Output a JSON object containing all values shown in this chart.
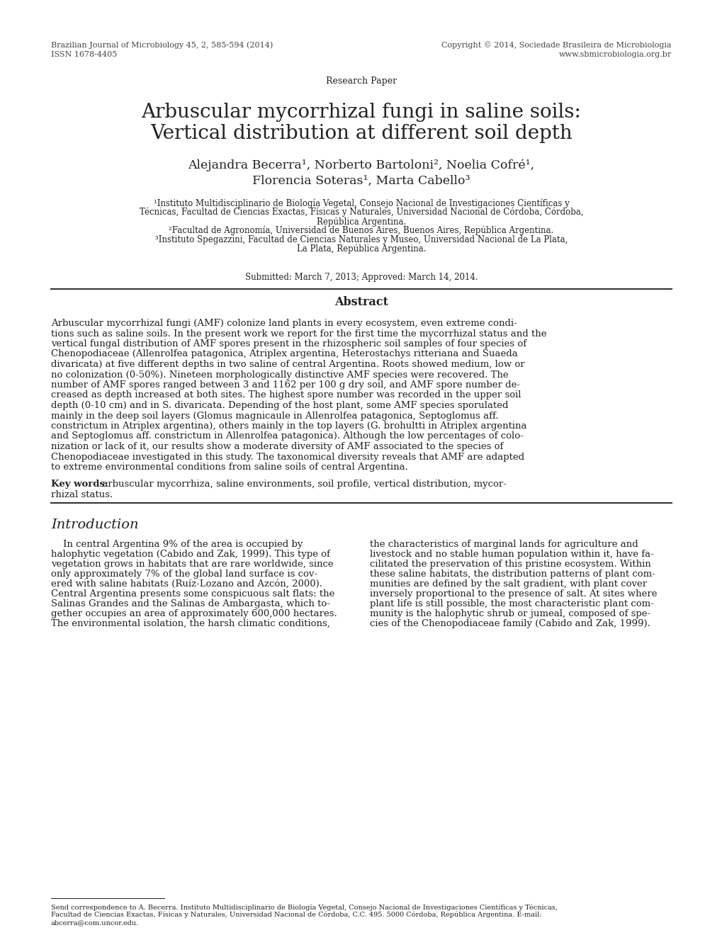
{
  "bg_color": "#ffffff",
  "text_color": "#222222",
  "header_color": "#444444",
  "header_left_line1": "Brazilian Journal of Microbiology 45, 2, 585-594 (2014)",
  "header_left_line2": "ISSN 1678-4405",
  "header_right_line1": "Copyright © 2014, Sociedade Brasileira de Microbiologia",
  "header_right_line2": "www.sbmicrobiologia.org.br",
  "research_paper_label": "Research Paper",
  "title_line1": "Arbuscular mycorrhizal fungi in saline soils:",
  "title_line2": "Vertical distribution at different soil depth",
  "authors_line1": "Alejandra Becerra¹, Norberto Bartoloni², Noelia Cofré¹,",
  "authors_line2": "Florencia Soteras¹, Marta Cabello³",
  "affil1": "¹Instituto Multidisciplinario de Biología Vegetal, Consejo Nacional de Investigaciones Científicas y",
  "affil1b": "Técnicas, Facultad de Ciencias Exactas, Físicas y Naturales, Universidad Nacional de Córdoba, Córdoba,",
  "affil1c": "República Argentina.",
  "affil2": "²Facultad de Agronomía, Universidad de Buenos Aires, Buenos Aires, República Argentina.",
  "affil3": "³Instituto Spegazzini, Facultad de Ciencias Naturales y Museo, Universidad Nacional de La Plata,",
  "affil3b": "La Plata, República Argentina.",
  "submitted": "Submitted: March 7, 2013; Approved: March 14, 2014.",
  "abstract_title": "Abstract",
  "abstract_lines": [
    "Arbuscular mycorrhizal fungi (AMF) colonize land plants in every ecosystem, even extreme condi-",
    "tions such as saline soils. In the present work we report for the first time the mycorrhizal status and the",
    "vertical fungal distribution of AMF spores present in the rhizospheric soil samples of four species of",
    "Chenopodiaceae (​Allenrolfea patagonica​, ​Atriplex argentina​, ​Heterostachys ritteriana​ and ​Suaeda",
    "​divaricata​) at five different depths in two saline of central Argentina. Roots showed medium, low or",
    "no colonization (0-50%). Nineteen morphologically distinctive AMF species were recovered. The",
    "number of AMF spores ranged between 3 and 1162 per 100 g dry soil, and AMF spore number de-",
    "creased as depth increased at both sites. The highest spore number was recorded in the upper soil",
    "depth (0-10 cm) and in ​S. divaricata​. Depending of the host plant, some AMF species sporulated",
    "mainly in the deep soil layers (​Glomus magnicaule​ in ​Allenrolfea patagonica​, ​Septoglomus​ aff.",
    "​constrictum​ in ​Atriplex argentina​), others mainly in the top layers (​G. brohultti​ in ​Atriplex argentina",
    "and ​Septoglomus​ aff. ​constrictum​ in ​Allenrolfea patagonica​). Although the low percentages of colo-",
    "nization or lack of it, our results show a moderate diversity of AMF associated to the species of",
    "Chenopodiaceae investigated in this study. The taxonomical diversity reveals that AMF are adapted",
    "to extreme environmental conditions from saline soils of central Argentina."
  ],
  "keywords_bold": "Key words:",
  "keywords_rest_line1": " arbuscular mycorrhiza, saline environments, soil profile, vertical distribution, mycor-",
  "keywords_rest_line2": "rhizal status.",
  "intro_title": "Introduction",
  "intro_col1_lines": [
    "    In central Argentina 9% of the area is occupied by",
    "halophytic vegetation (Cabido and Zak, 1999). This type of",
    "vegetation grows in habitats that are rare worldwide, since",
    "only approximately 7% of the global land surface is cov-",
    "ered with saline habitats (Ruíz-Lozano and Azcón, 2000).",
    "Central Argentina presents some conspicuous salt flats: the",
    "Salinas Grandes and the Salinas de Ambargasta, which to-",
    "gether occupies an area of approximately 600,000 hectares.",
    "The environmental isolation, the harsh climatic conditions,"
  ],
  "intro_col2_lines": [
    "the characteristics of marginal lands for agriculture and",
    "livestock and no stable human population within it, have fa-",
    "cilitated the preservation of this pristine ecosystem. Within",
    "these saline habitats, the distribution patterns of plant com-",
    "munities are defined by the salt gradient, with plant cover",
    "inversely proportional to the presence of salt. At sites where",
    "plant life is still possible, the most characteristic plant com-",
    "munity is the halophytic shrub or jumeal, composed of spe-",
    "cies of the Chenopodiaceae family (Cabido and Zak, 1999)."
  ],
  "footer_line1": "Send correspondence to A. Becerra. Instituto Multidisciplinario de Biología Vegetal, Consejo Nacional de Investigaciones Científicas y Técnicas,",
  "footer_line2": "Facultad de Ciencias Exactas, Físicas y Naturales, Universidad Nacional de Córdoba, C.C. 495. 5000 Córdoba, República Argentina. E-mail:",
  "footer_line3": "abcerra@com.uncor.edu."
}
